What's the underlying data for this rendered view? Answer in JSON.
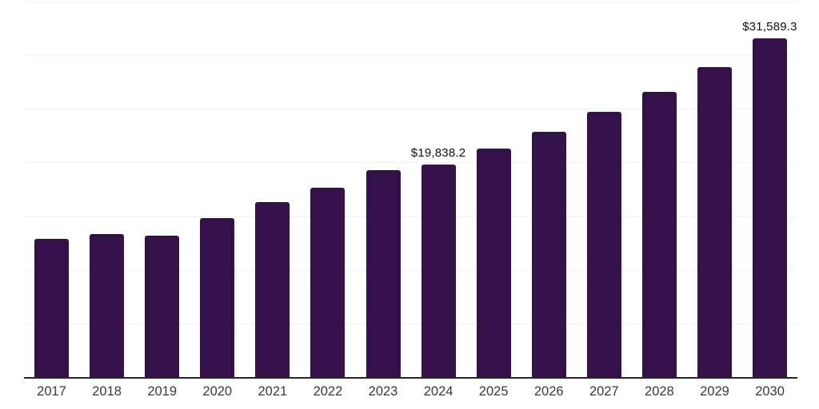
{
  "chart_data": {
    "type": "bar",
    "title": "",
    "categories": [
      "2017",
      "2018",
      "2019",
      "2020",
      "2021",
      "2022",
      "2023",
      "2024",
      "2025",
      "2026",
      "2027",
      "2028",
      "2029",
      "2030"
    ],
    "values": [
      12900,
      13350,
      13150,
      14800,
      16300,
      17650,
      19300,
      19838.2,
      21300,
      22900,
      24700,
      26550,
      28900,
      31589.3
    ],
    "data_labels": [
      {
        "category": "2024",
        "text": "$19,838.2"
      },
      {
        "category": "2030",
        "text": "$31,589.3"
      }
    ],
    "xlabel": "",
    "ylabel": "",
    "ylim": [
      0,
      35000
    ],
    "gridline_step": 5000,
    "grid": true,
    "legend_position": "none",
    "colors": {
      "bar_fill": "#341149",
      "axis_line": "#262626",
      "gridline": "#f2f2f2",
      "tick_label": "#3a3a3a",
      "data_label": "#111111",
      "background": "#ffffff"
    }
  }
}
